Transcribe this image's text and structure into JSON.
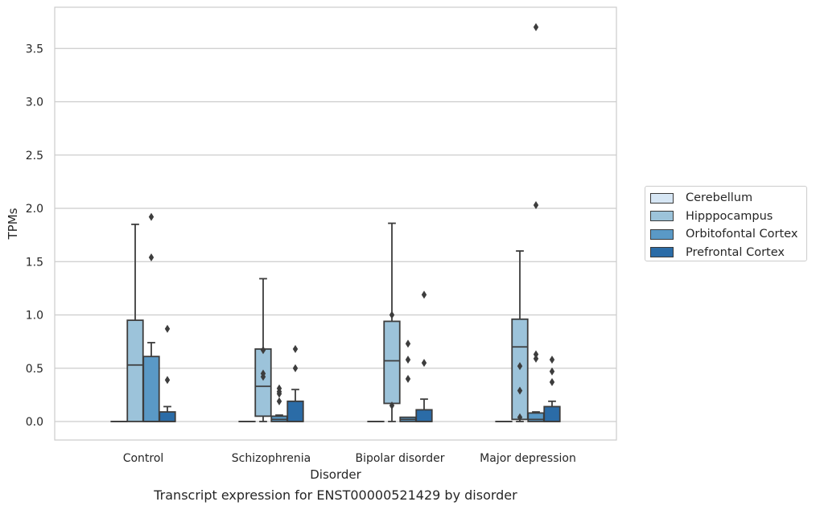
{
  "caption": "Transcript expression for ENST00000521429 by disorder",
  "chart_data": {
    "type": "box",
    "xlabel": "Disorder",
    "ylabel": "TPMs",
    "ylim": [
      -0.18,
      3.9
    ],
    "yticks": [
      "0.0",
      "0.5",
      "1.0",
      "1.5",
      "2.0",
      "2.5",
      "3.0",
      "3.5"
    ],
    "grid": "horizontal",
    "legend_position": "right",
    "categories": [
      "Control",
      "Schizophrenia",
      "Bipolar disorder",
      "Major depression"
    ],
    "series": [
      {
        "name": "Cerebellum",
        "color": "#d6e6f4",
        "boxes": [
          {
            "q1": 0,
            "median": 0,
            "q3": 0,
            "whislo": 0,
            "whishi": 0,
            "fliers": []
          },
          {
            "q1": 0,
            "median": 0,
            "q3": 0,
            "whislo": 0,
            "whishi": 0,
            "fliers": []
          },
          {
            "q1": 0,
            "median": 0,
            "q3": 0,
            "whislo": 0,
            "whishi": 0,
            "fliers": []
          },
          {
            "q1": 0,
            "median": 0,
            "q3": 0,
            "whislo": 0,
            "whishi": 0,
            "fliers": []
          }
        ]
      },
      {
        "name": "Hipppocampus",
        "color": "#9cc3da",
        "boxes": [
          {
            "q1": 0,
            "median": 0.53,
            "q3": 0.95,
            "whislo": 0,
            "whishi": 1.85,
            "fliers": []
          },
          {
            "q1": 0.05,
            "median": 0.33,
            "q3": 0.68,
            "whislo": 0,
            "whishi": 1.34,
            "fliers": [
              0.67,
              0.45,
              0.42
            ]
          },
          {
            "q1": 0.17,
            "median": 0.57,
            "q3": 0.94,
            "whislo": 0,
            "whishi": 1.86,
            "fliers": [
              1.0,
              0.15
            ]
          },
          {
            "q1": 0.02,
            "median": 0.7,
            "q3": 0.96,
            "whislo": 0,
            "whishi": 1.6,
            "fliers": [
              0.52,
              0.29,
              0.04
            ]
          }
        ]
      },
      {
        "name": "Orbitofontal Cortex",
        "color": "#5a99c6",
        "boxes": [
          {
            "q1": 0,
            "median": 0,
            "q3": 0.61,
            "whislo": 0,
            "whishi": 0.74,
            "fliers": [
              1.92,
              1.54
            ]
          },
          {
            "q1": 0,
            "median": 0.02,
            "q3": 0.05,
            "whislo": 0,
            "whishi": 0.06,
            "fliers": [
              0.31,
              0.28,
              0.26,
              0.19
            ]
          },
          {
            "q1": 0,
            "median": 0.02,
            "q3": 0.04,
            "whislo": 0,
            "whishi": 0.04,
            "fliers": [
              0.73,
              0.58,
              0.4
            ]
          },
          {
            "q1": 0,
            "median": 0.02,
            "q3": 0.08,
            "whislo": 0,
            "whishi": 0.09,
            "fliers": [
              3.7,
              2.03,
              0.63,
              0.59
            ]
          }
        ]
      },
      {
        "name": "Prefrontal Cortex",
        "color": "#2b6ca7",
        "boxes": [
          {
            "q1": 0,
            "median": 0,
            "q3": 0.09,
            "whislo": 0,
            "whishi": 0.14,
            "fliers": [
              0.87,
              0.39
            ]
          },
          {
            "q1": 0,
            "median": 0,
            "q3": 0.19,
            "whislo": 0,
            "whishi": 0.3,
            "fliers": [
              0.68,
              0.5
            ]
          },
          {
            "q1": 0,
            "median": 0,
            "q3": 0.11,
            "whislo": 0,
            "whishi": 0.21,
            "fliers": [
              1.19,
              0.55
            ]
          },
          {
            "q1": 0,
            "median": 0,
            "q3": 0.14,
            "whislo": 0,
            "whishi": 0.19,
            "fliers": [
              0.58,
              0.47,
              0.37
            ]
          }
        ]
      }
    ]
  }
}
